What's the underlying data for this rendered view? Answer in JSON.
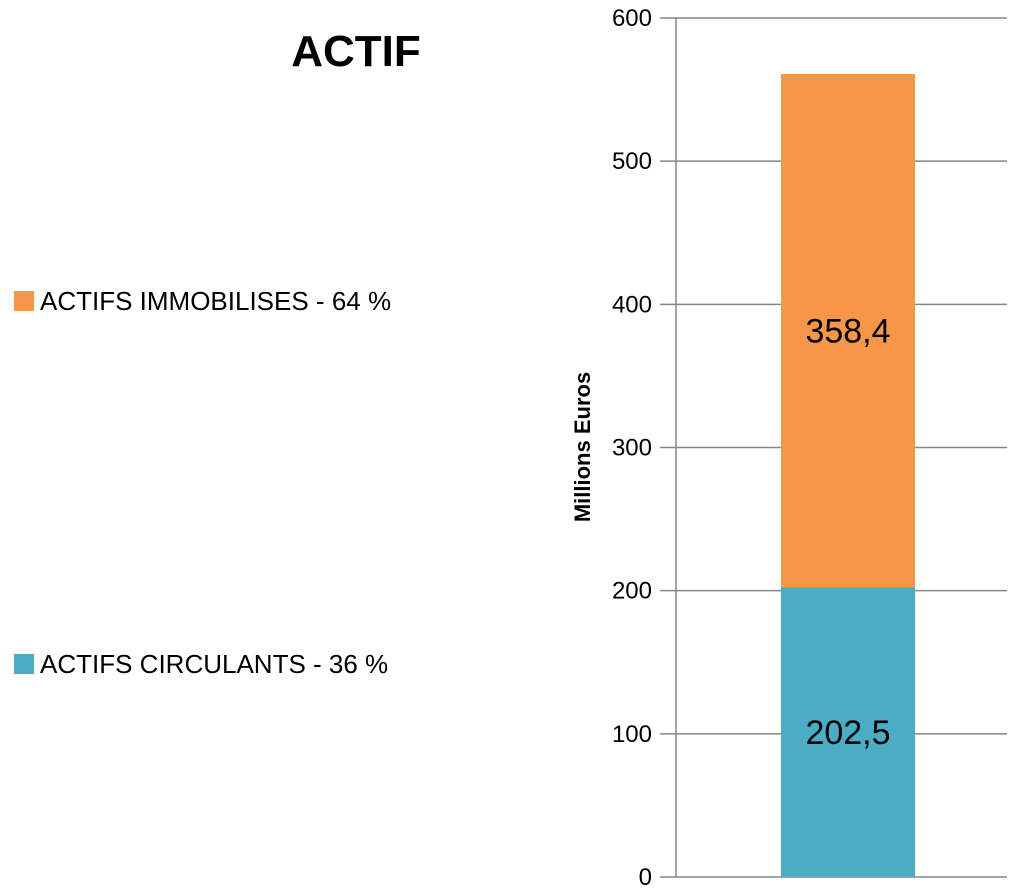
{
  "chart_data": {
    "type": "bar",
    "stacked": true,
    "title": "ACTIF",
    "ylabel": "Millions Euros",
    "xlabel": "",
    "ylim": [
      0,
      600
    ],
    "yticks": [
      0,
      100,
      200,
      300,
      400,
      500,
      600
    ],
    "grid": true,
    "legend_position": "left",
    "series": [
      {
        "name": "ACTIFS CIRCULANTS - 36 %",
        "values": [
          202.5
        ],
        "label": "202,5",
        "color": "#4BACC6"
      },
      {
        "name": "ACTIFS IMMOBILISES - 64 %",
        "values": [
          358.4
        ],
        "label": "358,4",
        "color": "#F79646"
      }
    ],
    "legend_order": [
      1,
      0
    ]
  }
}
